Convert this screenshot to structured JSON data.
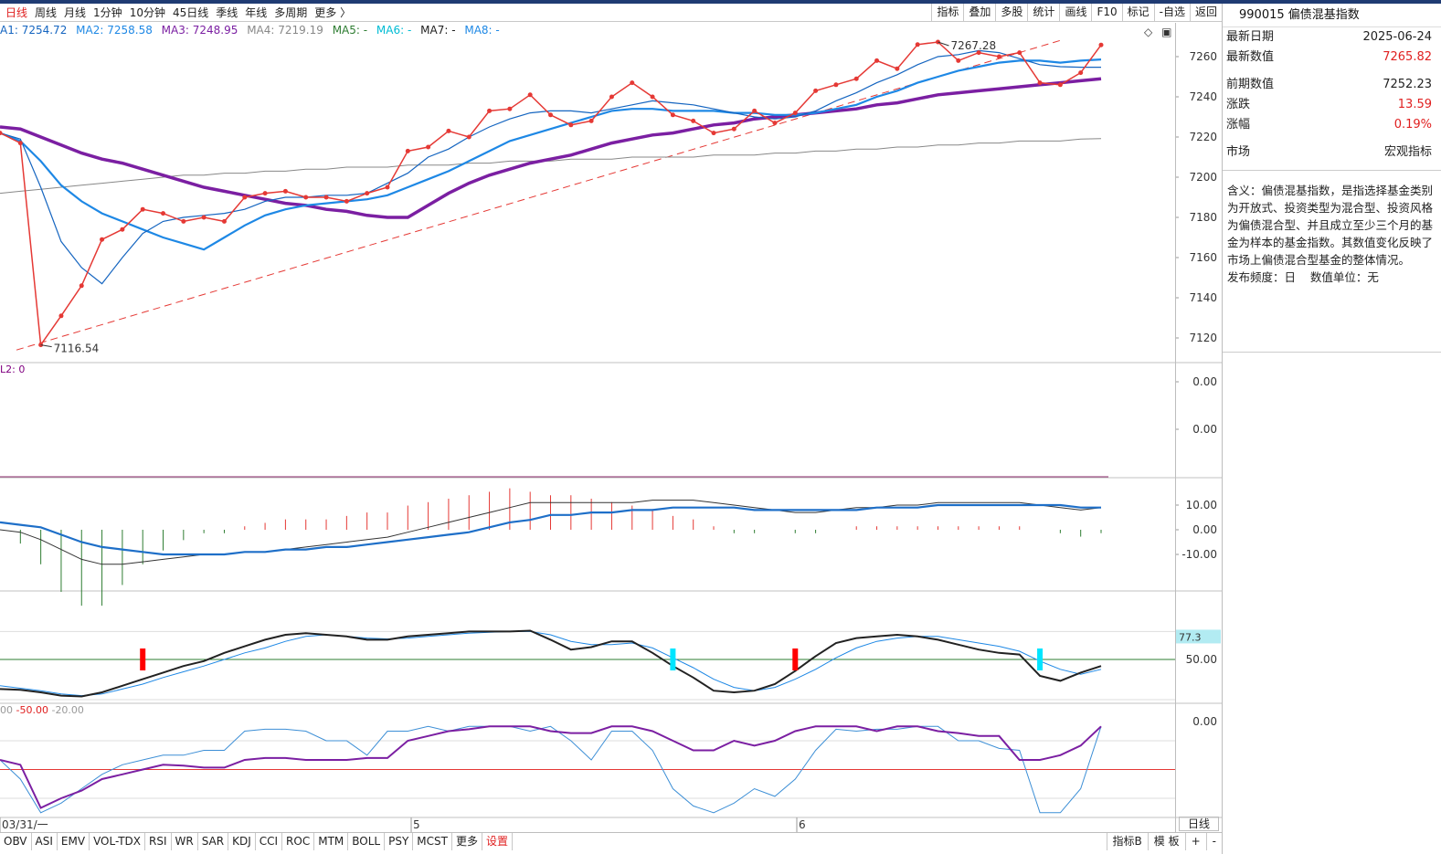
{
  "toolbar": {
    "periods": [
      "日线",
      "周线",
      "月线",
      "1分钟",
      "10分钟",
      "45日线",
      "季线",
      "年线",
      "多周期",
      "更多 〉"
    ],
    "active_period": "日线",
    "tools": [
      "指标",
      "叠加",
      "多股",
      "统计",
      "画线",
      "F10",
      "标记",
      "-自选",
      "返回"
    ]
  },
  "ma_legend": {
    "ma1": "A1: 7254.72",
    "ma2": "MA2: 7258.58",
    "ma3": "MA3: 7248.95",
    "ma4": "MA4: 7219.19",
    "ma5": "MA5: -",
    "ma6": "MA6: -",
    "ma7": "MA7: -",
    "ma8": "MA8: -",
    "colors": {
      "ma1": "#1565c0",
      "ma2": "#1e88e5",
      "ma3": "#7b1fa2",
      "ma4": "#888888",
      "ma5": "#2e7d32",
      "ma6": "#00bcd4",
      "ma7": "#222222",
      "ma8": "#1e88e5"
    }
  },
  "price_annotations": {
    "high": "7267.28",
    "low": "7116.54"
  },
  "legend_panel2": "L2: 0",
  "legend_panel5": {
    "a": "00",
    "b": "-50.00",
    "c": "-20.00"
  },
  "kdj_marker": "77.3",
  "chart_data": [
    {
      "type": "line",
      "panel": "main",
      "y_ticks": [
        7120,
        7140,
        7160,
        7180,
        7200,
        7220,
        7240,
        7260
      ],
      "x_labels": [
        "03/31/一",
        "5",
        "6"
      ],
      "series": [
        {
          "role": "close",
          "color": "#e53935",
          "values": [
            7222,
            7217,
            7116.54,
            7131,
            7146,
            7169,
            7174,
            7184,
            7182,
            7178,
            7180,
            7178,
            7190,
            7192,
            7193,
            7190,
            7190,
            7188,
            7192,
            7195,
            7213,
            7215,
            7223,
            7220,
            7233,
            7234,
            7241,
            7231,
            7226,
            7228,
            7240,
            7247,
            7240,
            7231,
            7228,
            7222,
            7224,
            7233,
            7227,
            7232,
            7243,
            7246,
            7249,
            7258,
            7254,
            7266,
            7267.28,
            7258,
            7262,
            7260,
            7262,
            7247,
            7246,
            7252,
            7265.82
          ]
        },
        {
          "role": "ma-short",
          "color": "#1565c0",
          "values": [
            7222,
            7219,
            7195,
            7168,
            7155,
            7147,
            7160,
            7172,
            7178,
            7180,
            7181,
            7182,
            7184,
            7188,
            7190,
            7190,
            7191,
            7191,
            7192,
            7197,
            7202,
            7210,
            7214,
            7220,
            7225,
            7229,
            7232,
            7233,
            7233,
            7232,
            7234,
            7236,
            7238,
            7237,
            7236,
            7234,
            7232,
            7230,
            7229,
            7230,
            7233,
            7238,
            7242,
            7247,
            7251,
            7256,
            7260,
            7261,
            7263,
            7262,
            7259,
            7256,
            7255,
            7254.72,
            7254.72
          ]
        },
        {
          "role": "ma-medium",
          "color": "#1e88e5",
          "values": [
            7222,
            7218,
            7208,
            7196,
            7188,
            7182,
            7178,
            7174,
            7170,
            7167,
            7164,
            7170,
            7176,
            7181,
            7184,
            7186,
            7187,
            7188,
            7189,
            7191,
            7195,
            7199,
            7203,
            7208,
            7213,
            7218,
            7221,
            7224,
            7227,
            7230,
            7233,
            7234,
            7234,
            7233,
            7233,
            7233,
            7232,
            7232,
            7231,
            7231,
            7232,
            7234,
            7236,
            7240,
            7243,
            7247,
            7250,
            7253,
            7255,
            7257,
            7258,
            7258,
            7257,
            7258,
            7258.58
          ]
        },
        {
          "role": "ma-long",
          "color": "#7b1fa2",
          "values": [
            7225,
            7224,
            7220,
            7216,
            7212,
            7209,
            7207,
            7204,
            7201,
            7198,
            7195,
            7193,
            7191,
            7189,
            7187,
            7186,
            7184,
            7183,
            7181,
            7180,
            7180,
            7186,
            7192,
            7197,
            7201,
            7204,
            7207,
            7209,
            7211,
            7214,
            7217,
            7219,
            7221,
            7222,
            7224,
            7226,
            7227,
            7229,
            7230,
            7231,
            7232,
            7233,
            7234,
            7236,
            7237,
            7239,
            7241,
            7242,
            7243,
            7244,
            7245,
            7246,
            7247,
            7248,
            7248.95
          ]
        },
        {
          "role": "ma-longest",
          "color": "#888888",
          "values": [
            7192,
            7193,
            7194,
            7195,
            7196,
            7197,
            7198,
            7199,
            7200,
            7201,
            7201,
            7202,
            7202,
            7203,
            7203,
            7204,
            7204,
            7205,
            7205,
            7205,
            7206,
            7206,
            7206,
            7207,
            7207,
            7208,
            7208,
            7208,
            7209,
            7209,
            7209,
            7210,
            7210,
            7210,
            7210,
            7211,
            7211,
            7211,
            7212,
            7212,
            7213,
            7213,
            7214,
            7214,
            7215,
            7215,
            7216,
            7216,
            7217,
            7217,
            7218,
            7218,
            7218,
            7219,
            7219.19
          ]
        }
      ]
    },
    {
      "type": "line",
      "panel": "indicator-2",
      "y_ticks": [
        0.0,
        0.0
      ]
    },
    {
      "type": "bar",
      "panel": "macd",
      "y_ticks": [
        10.0,
        0.0,
        -10.0
      ],
      "series": [
        {
          "name": "DIF",
          "color": "#333333",
          "values": [
            0,
            -1,
            -4,
            -8,
            -12,
            -14,
            -14,
            -13,
            -12,
            -11,
            -10,
            -10,
            -9,
            -9,
            -8,
            -7,
            -6,
            -5,
            -4,
            -3,
            -1,
            1,
            3,
            5,
            7,
            9,
            11,
            11,
            11,
            11,
            11,
            11,
            12,
            12,
            12,
            11,
            10,
            9,
            8,
            7,
            7,
            8,
            9,
            9,
            10,
            10,
            11,
            11,
            11,
            11,
            11,
            10,
            9,
            8,
            9
          ]
        },
        {
          "name": "DEA",
          "color": "#1e6fc8",
          "values": [
            3,
            2,
            1,
            -2,
            -5,
            -7,
            -8,
            -9,
            -10,
            -10,
            -10,
            -10,
            -9,
            -9,
            -8,
            -8,
            -7,
            -7,
            -6,
            -5,
            -4,
            -3,
            -2,
            -1,
            1,
            3,
            4,
            6,
            6,
            7,
            7,
            8,
            8,
            9,
            9,
            9,
            9,
            8,
            8,
            8,
            8,
            8,
            8,
            9,
            9,
            9,
            10,
            10,
            10,
            10,
            10,
            10,
            10,
            9,
            9
          ]
        },
        {
          "name": "MACD",
          "color_pos": "#e53935",
          "color_neg": "#2e7d32",
          "values": [
            0,
            -4,
            -10,
            -18,
            -22,
            -22,
            -16,
            -10,
            -6,
            -3,
            -1,
            -1,
            1,
            2,
            3,
            3,
            3,
            4,
            5,
            5,
            7,
            8,
            9,
            10,
            11,
            12,
            11,
            10,
            10,
            9,
            8,
            7,
            6,
            4,
            3,
            1,
            -1,
            -1,
            0,
            -1,
            -1,
            0,
            1,
            1,
            1,
            1,
            1,
            1,
            1,
            1,
            1,
            0,
            -1,
            -2,
            -1
          ]
        }
      ]
    },
    {
      "type": "line",
      "panel": "kdj",
      "y_ticks": [
        50.0
      ],
      "series": [
        {
          "name": "K",
          "color": "#222222",
          "values": [
            14,
            13,
            10,
            6,
            5,
            10,
            18,
            26,
            34,
            42,
            48,
            58,
            66,
            74,
            80,
            82,
            80,
            78,
            74,
            74,
            78,
            80,
            82,
            84,
            84,
            84,
            85,
            74,
            62,
            65,
            72,
            72,
            58,
            42,
            28,
            12,
            10,
            12,
            20,
            36,
            54,
            70,
            76,
            78,
            80,
            78,
            74,
            68,
            62,
            58,
            56,
            30,
            24,
            34,
            42
          ]
        },
        {
          "name": "D",
          "color": "#1e88e5",
          "values": [
            18,
            15,
            12,
            8,
            6,
            8,
            14,
            20,
            28,
            35,
            42,
            50,
            58,
            64,
            72,
            78,
            80,
            78,
            76,
            75,
            76,
            78,
            80,
            82,
            83,
            84,
            84,
            80,
            72,
            68,
            68,
            70,
            64,
            52,
            40,
            26,
            16,
            12,
            16,
            26,
            38,
            52,
            64,
            72,
            76,
            78,
            78,
            74,
            70,
            66,
            60,
            48,
            38,
            32,
            38
          ]
        }
      ],
      "markers": [
        {
          "index": 7,
          "color": "#ff0000"
        },
        {
          "index": 33,
          "color": "#00e5ff"
        },
        {
          "index": 39,
          "color": "#ff0000"
        },
        {
          "index": 51,
          "color": "#00e5ff"
        }
      ]
    },
    {
      "type": "line",
      "panel": "wr",
      "y_ticks": [
        0.0
      ],
      "series": [
        {
          "name": "WR1",
          "color": "#3d8fd6",
          "values": [
            -40,
            -60,
            -95,
            -85,
            -70,
            -55,
            -45,
            -40,
            -35,
            -35,
            -30,
            -30,
            -10,
            -8,
            -8,
            -10,
            -20,
            -20,
            -35,
            -10,
            -10,
            -5,
            -10,
            -5,
            -5,
            -5,
            -10,
            -5,
            -20,
            -40,
            -10,
            -10,
            -30,
            -70,
            -88,
            -95,
            -85,
            -70,
            -78,
            -60,
            -30,
            -8,
            -10,
            -8,
            -8,
            -5,
            -5,
            -20,
            -20,
            -28,
            -30,
            -95,
            -95,
            -70,
            -5
          ]
        },
        {
          "name": "WR2",
          "color": "#7b1fa2",
          "values": [
            -40,
            -45,
            -90,
            -80,
            -72,
            -60,
            -55,
            -50,
            -45,
            -46,
            -48,
            -48,
            -40,
            -38,
            -38,
            -40,
            -40,
            -40,
            -38,
            -38,
            -20,
            -15,
            -10,
            -8,
            -5,
            -5,
            -5,
            -10,
            -12,
            -12,
            -5,
            -5,
            -10,
            -20,
            -30,
            -30,
            -20,
            -25,
            -20,
            -10,
            -5,
            -5,
            -5,
            -10,
            -5,
            -5,
            -10,
            -12,
            -15,
            -15,
            -40,
            -40,
            -35,
            -25,
            -5
          ]
        }
      ]
    }
  ],
  "right_panel": {
    "title": "990015 偏债混基指数",
    "rows": [
      {
        "k": "最新日期",
        "v": "2025-06-24",
        "red": false
      },
      {
        "k": "最新数值",
        "v": "7265.82",
        "red": true
      }
    ],
    "rows2": [
      {
        "k": "前期数值",
        "v": "7252.23",
        "red": false
      },
      {
        "k": "涨跌",
        "v": "13.59",
        "red": true
      },
      {
        "k": "涨幅",
        "v": "0.19%",
        "red": true
      }
    ],
    "rows3": [
      {
        "k": "市场",
        "v": "宏观指标",
        "red": false
      }
    ],
    "description": "含义：偏债混基指数，是指选择基金类别为开放式、投资类型为混合型、投资风格为偏债混合型、并且成立至少三个月的基金为样本的基金指数。其数值变化反映了市场上偏债混合型基金的整体情况。",
    "freq_line": "发布频度：日    数值单位：无"
  },
  "bottom": {
    "indicators": [
      "OBV",
      "ASI",
      "EMV",
      "VOL-TDX",
      "RSI",
      "WR",
      "SAR",
      "KDJ",
      "CCI",
      "ROC",
      "MTM",
      "BOLL",
      "PSY",
      "MCST",
      "更多",
      "设置"
    ],
    "right_tools": [
      "指标B",
      "模 板",
      "+",
      "-"
    ],
    "period_label": "日线"
  }
}
